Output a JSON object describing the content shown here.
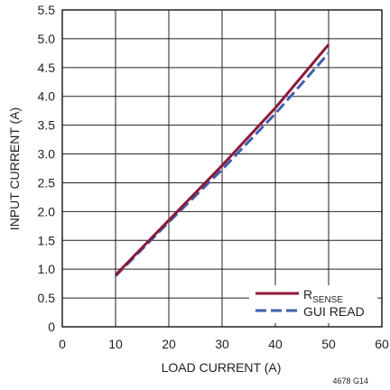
{
  "chart_data": {
    "type": "line",
    "xlabel": "LOAD CURRENT (A)",
    "ylabel": "INPUT CURRENT  (A)",
    "xlim": [
      0,
      60
    ],
    "ylim": [
      0,
      5.5
    ],
    "xticks": [
      "0",
      "10",
      "20",
      "30",
      "40",
      "50",
      "60"
    ],
    "yticks": [
      "0",
      "0.5",
      "1.0",
      "1.5",
      "2.0",
      "2.5",
      "3.0",
      "3.5",
      "4.0",
      "4.5",
      "5.0",
      "5.5"
    ],
    "grid": true,
    "legend_position": "bottom-right",
    "figure_id": "4678 G14",
    "series": [
      {
        "name_main": "R",
        "name_sub": "SENSE",
        "color": "#8b1a3a",
        "style": "solid",
        "x": [
          10,
          20,
          30,
          40,
          50
        ],
        "y": [
          0.9,
          1.85,
          2.8,
          3.8,
          4.9
        ]
      },
      {
        "name": "GUI READ",
        "color": "#3f5fae",
        "style": "dashed",
        "x": [
          10,
          20,
          30,
          40,
          50
        ],
        "y": [
          0.88,
          1.82,
          2.73,
          3.7,
          4.75
        ]
      }
    ]
  }
}
